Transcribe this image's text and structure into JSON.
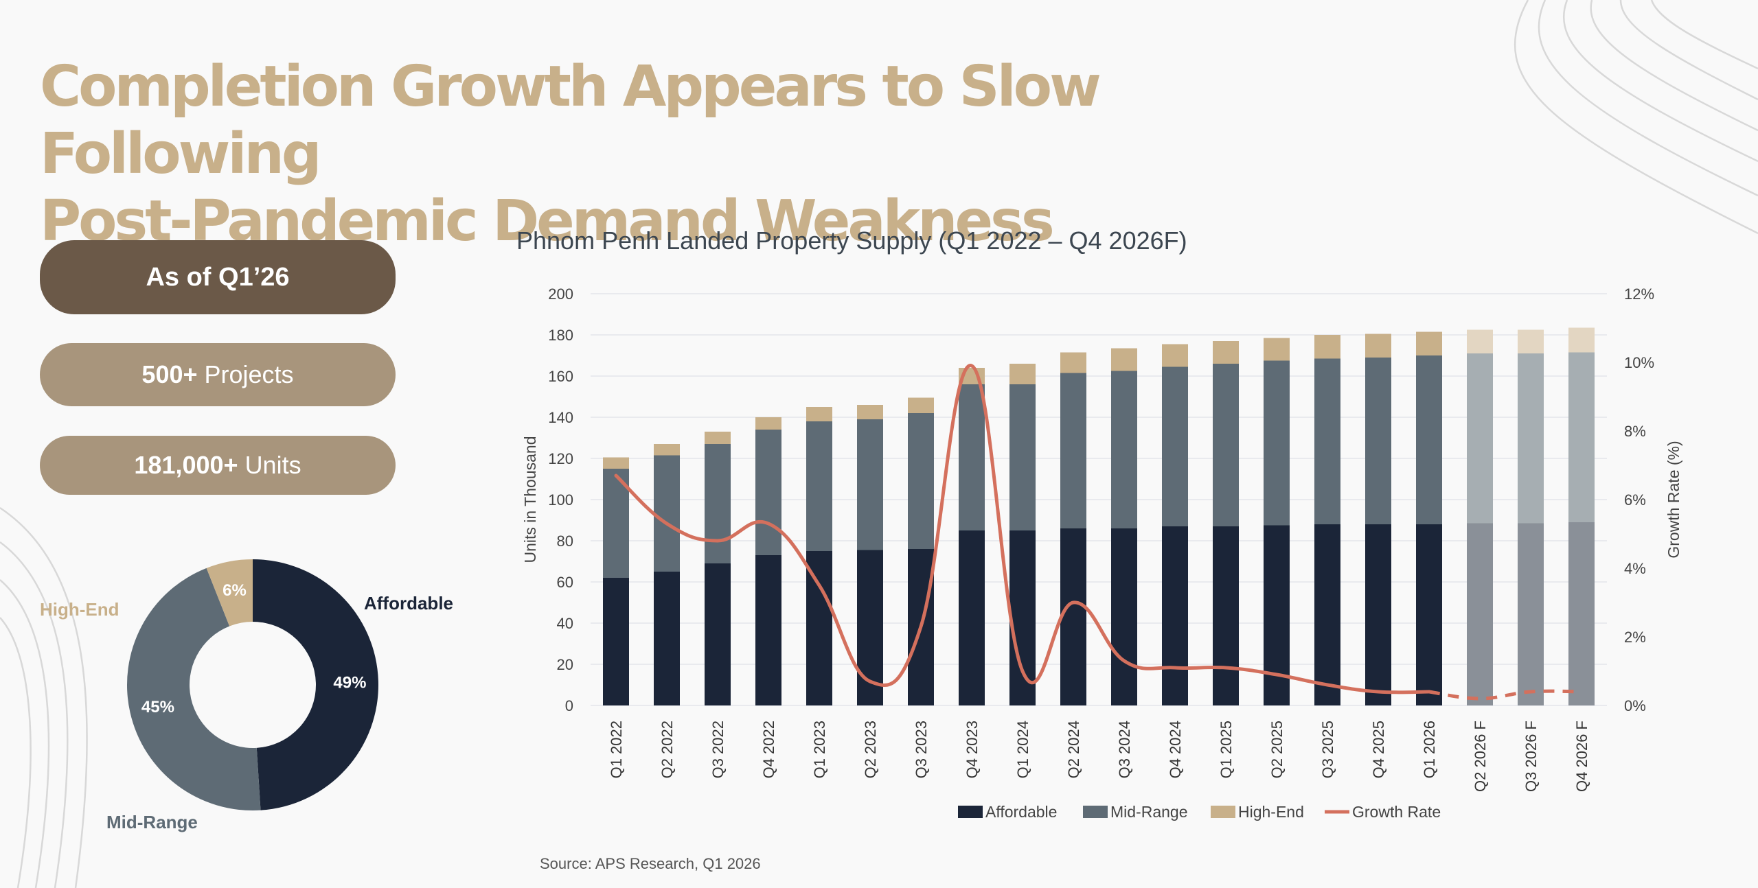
{
  "title": {
    "line1": "Completion Growth Appears to Slow Following",
    "line2": "Post-Pandemic Demand Weakness"
  },
  "stats": {
    "as_of": "As of Q1’26",
    "projects_value": "500+",
    "projects_label": "Projects",
    "units_value": "181,000+",
    "units_label": "Units"
  },
  "donut": {
    "slices": [
      {
        "label": "Affordable",
        "percent": 49,
        "percent_label": "49%",
        "color": "#1b2538",
        "label_color": "#1b2538"
      },
      {
        "label": "Mid-Range",
        "percent": 45,
        "percent_label": "45%",
        "color": "#5e6b75",
        "label_color": "#5e6b75"
      },
      {
        "label": "High-End",
        "percent": 6,
        "percent_label": "6%",
        "color": "#c8b08a",
        "label_color": "#c8b08a"
      }
    ]
  },
  "chart_data": {
    "type": "bar",
    "stacked": true,
    "title": "Phnom Penh Landed Property Supply (Q1 2022 – Q4 2026F)",
    "ylabel": "Units in Thousand",
    "y2label": "Growth Rate (%)",
    "ylim": [
      0,
      200
    ],
    "y2lim": [
      0,
      12
    ],
    "yticks": [
      "0",
      "20",
      "40",
      "60",
      "80",
      "100",
      "120",
      "140",
      "160",
      "180",
      "200"
    ],
    "y2ticks": [
      "0%",
      "2%",
      "4%",
      "6%",
      "8%",
      "10%",
      "12%"
    ],
    "categories": [
      "Q1 2022",
      "Q2 2022",
      "Q3 2022",
      "Q4 2022",
      "Q1 2023",
      "Q2 2023",
      "Q3 2023",
      "Q4 2023",
      "Q1 2024",
      "Q2 2024",
      "Q3 2024",
      "Q4 2024",
      "Q1 2025",
      "Q2 2025",
      "Q3 2025",
      "Q4 2025",
      "Q1 2026",
      "Q2 2026 F",
      "Q3 2026 F",
      "Q4 2026 F"
    ],
    "forecast_start_index": 17,
    "series": [
      {
        "name": "Affordable",
        "color": "#1b2538",
        "forecast_color": "#8a9098",
        "values": [
          62,
          65,
          69,
          73,
          75,
          75.5,
          76,
          85,
          85,
          86,
          86,
          87,
          87,
          87.5,
          88,
          88,
          88,
          88.5,
          88.5,
          89
        ]
      },
      {
        "name": "Mid-Range",
        "color": "#5e6b75",
        "forecast_color": "#a6aeb2",
        "values": [
          53,
          56.5,
          58,
          61,
          63,
          63.5,
          66,
          71,
          71,
          75.5,
          76.5,
          77.5,
          79,
          80,
          80.5,
          81,
          82,
          82.5,
          82.5,
          82.5
        ]
      },
      {
        "name": "High-End",
        "color": "#c8b08a",
        "forecast_color": "#e3d6c2",
        "values": [
          5.5,
          5.5,
          6,
          6,
          7,
          7,
          7.5,
          8,
          10,
          10,
          11,
          11,
          11,
          11,
          11.5,
          11.5,
          11.5,
          11.5,
          11.5,
          12
        ]
      }
    ],
    "line_series": {
      "name": "Growth Rate",
      "color": "#d4705d",
      "axis": "right",
      "values": [
        6.7,
        5.3,
        4.8,
        5.3,
        3.5,
        0.7,
        2.3,
        9.9,
        1.0,
        3.0,
        1.3,
        1.1,
        1.1,
        0.9,
        0.6,
        0.4,
        0.4,
        0.2,
        0.4,
        0.4
      ],
      "dashed_from_index": 16
    },
    "legend": [
      "Affordable",
      "Mid-Range",
      "High-End",
      "Growth Rate"
    ],
    "legend_position": "bottom"
  },
  "source": "Source: APS Research, Q1 2026"
}
